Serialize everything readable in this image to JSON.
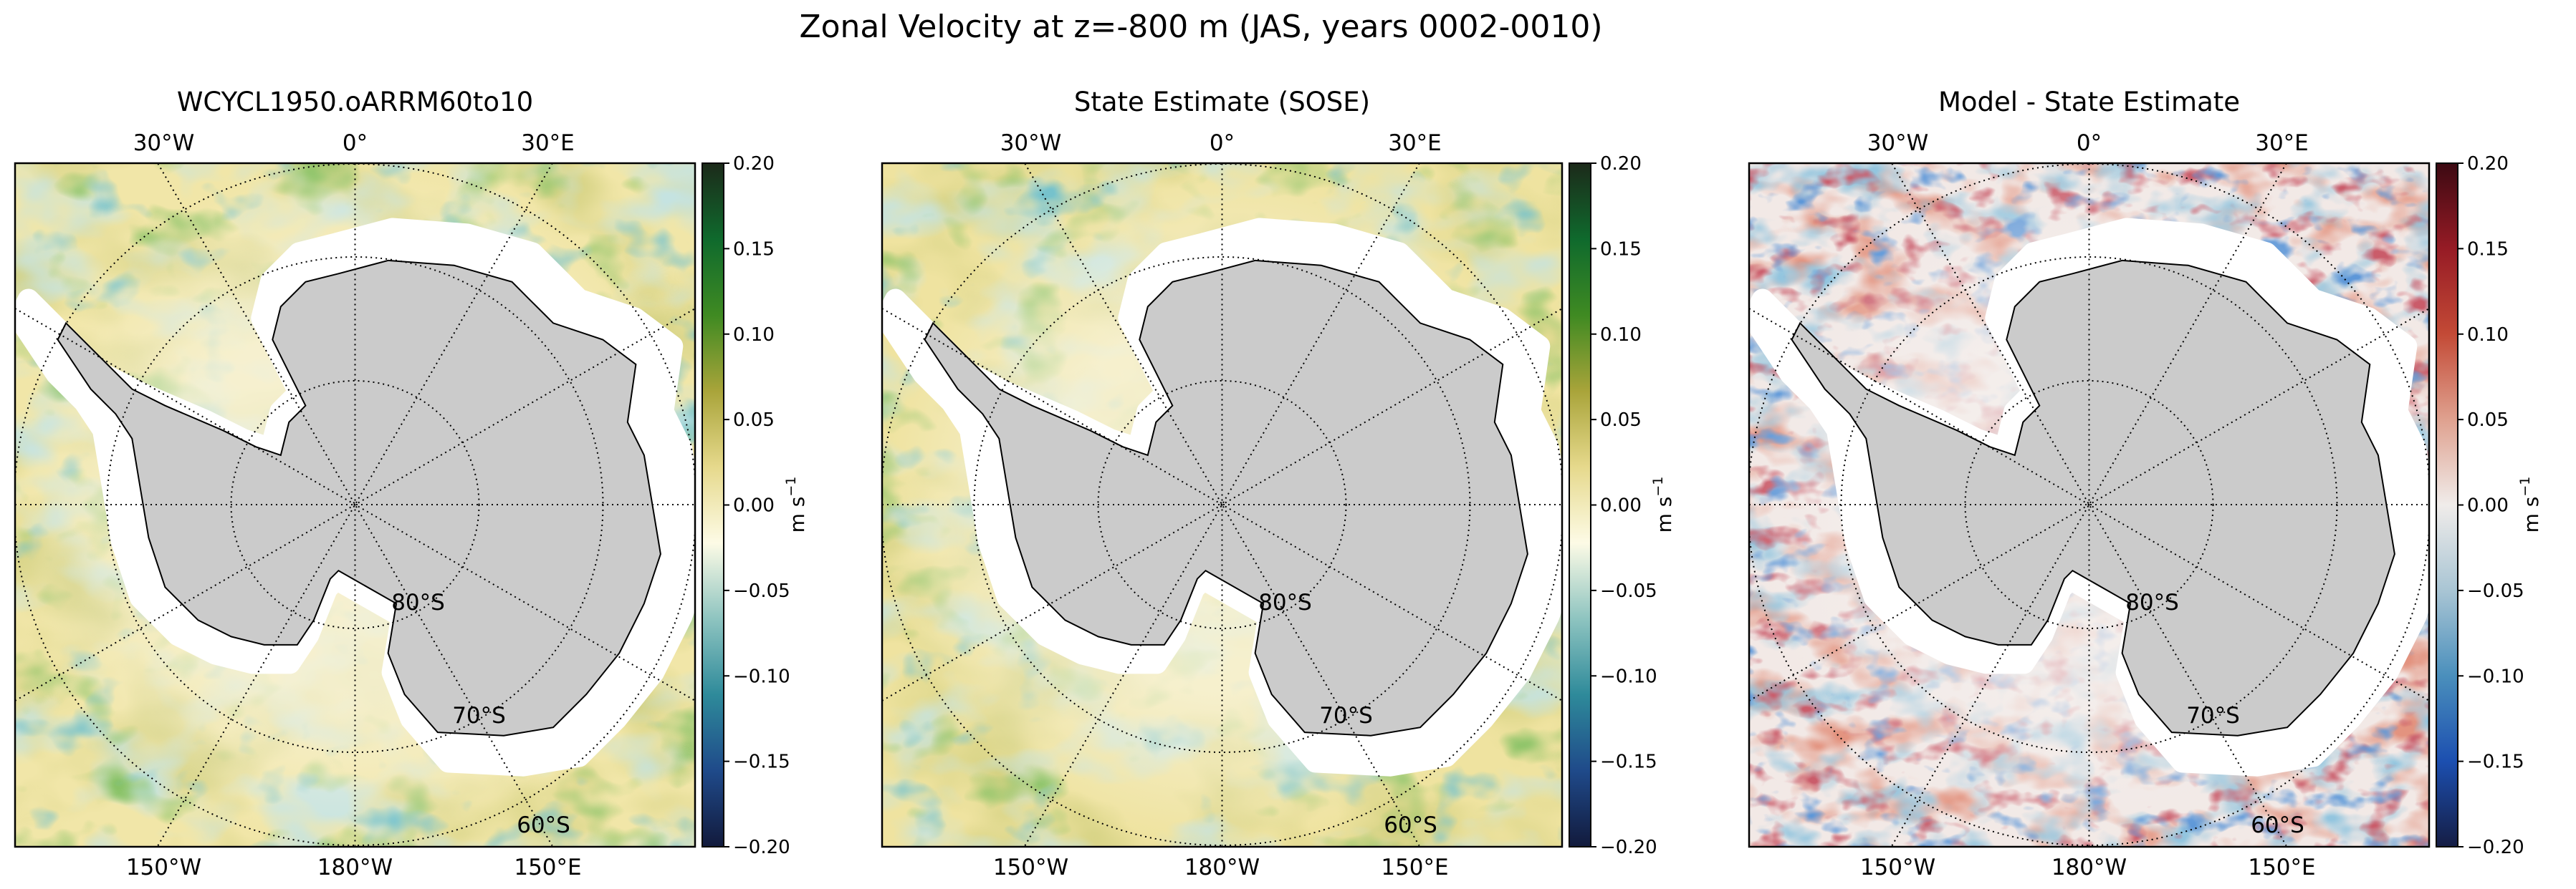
{
  "figure": {
    "suptitle": "Zonal Velocity at z=-800 m (JAS, years 0002-0010)"
  },
  "chart_data": [
    {
      "type": "heatmap",
      "projection": "south-polar-stereographic",
      "title": "WCYCL1950.oARRM60to10",
      "colormap": "green-yellow-white-teal-navy",
      "colors": [
        "#121a3c",
        "#1f4a8a",
        "#2e8a9a",
        "#8ec4c0",
        "#fdfbe6",
        "#e6d98c",
        "#a9a43a",
        "#3f8a22",
        "#0f6a2d",
        "#1c2a1a"
      ],
      "ocean_base": "#f1e6a8",
      "colorbar": {
        "label": "m s",
        "label_exp": "−1",
        "ticks": [
          "0.20",
          "0.15",
          "0.10",
          "0.05",
          "0.00",
          "−0.05",
          "−0.10",
          "−0.15",
          "−0.20"
        ],
        "vmin": -0.2,
        "vmax": 0.2
      },
      "lon_labels_top": [
        "30°W",
        "0°",
        "30°E"
      ],
      "lon_labels_bottom": [
        "150°W",
        "180°W",
        "150°E"
      ],
      "lat_labels": [
        "80°S",
        "70°S",
        "60°S"
      ]
    },
    {
      "type": "heatmap",
      "projection": "south-polar-stereographic",
      "title": "State Estimate (SOSE)",
      "colormap": "green-yellow-white-teal-navy",
      "colors": [
        "#121a3c",
        "#1f4a8a",
        "#2e8a9a",
        "#8ec4c0",
        "#fdfbe6",
        "#e6d98c",
        "#a9a43a",
        "#3f8a22",
        "#0f6a2d",
        "#1c2a1a"
      ],
      "ocean_base": "#efe3a0",
      "colorbar": {
        "label": "m s",
        "label_exp": "−1",
        "ticks": [
          "0.20",
          "0.15",
          "0.10",
          "0.05",
          "0.00",
          "−0.05",
          "−0.10",
          "−0.15",
          "−0.20"
        ],
        "vmin": -0.2,
        "vmax": 0.2
      },
      "lon_labels_top": [
        "30°W",
        "0°",
        "30°E"
      ],
      "lon_labels_bottom": [
        "150°W",
        "180°W",
        "150°E"
      ],
      "lat_labels": [
        "80°S",
        "70°S",
        "60°S"
      ]
    },
    {
      "type": "heatmap",
      "projection": "south-polar-stereographic",
      "title": "Model - State Estimate",
      "colormap": "blue-white-red",
      "colors": [
        "#151d44",
        "#1c4fb0",
        "#4a8fbc",
        "#a9c5d4",
        "#f0ecea",
        "#dfa18f",
        "#c34a36",
        "#961b25",
        "#3c0912"
      ],
      "ocean_base": "#f2e9e6",
      "colorbar": {
        "label": "m s",
        "label_exp": "−1",
        "ticks": [
          "0.20",
          "0.15",
          "0.10",
          "0.05",
          "0.00",
          "−0.05",
          "−0.10",
          "−0.15",
          "−0.20"
        ],
        "vmin": -0.2,
        "vmax": 0.2
      },
      "lon_labels_top": [
        "30°W",
        "0°",
        "30°E"
      ],
      "lon_labels_bottom": [
        "150°W",
        "180°W",
        "150°E"
      ],
      "lat_labels": [
        "80°S",
        "70°S",
        "60°S"
      ]
    }
  ],
  "land_color": "#cbcbcb"
}
